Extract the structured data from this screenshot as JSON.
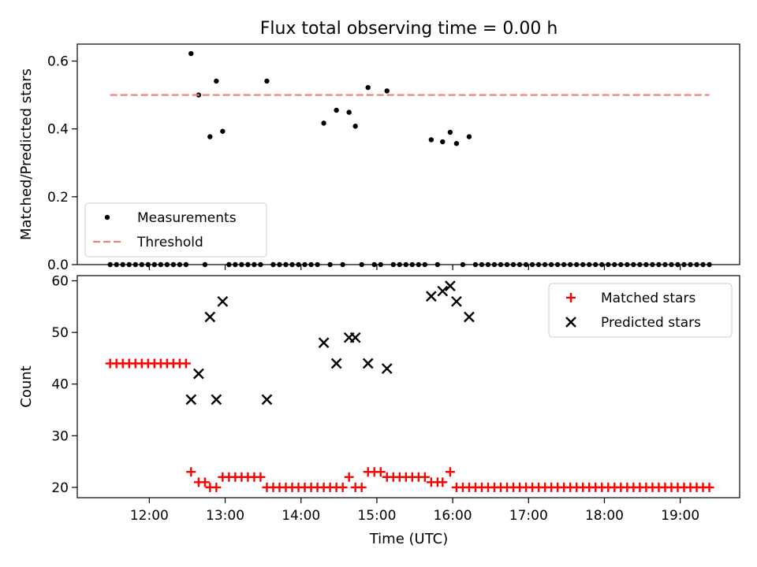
{
  "chart_data": {
    "title": "Flux total observing time = 0.00 h",
    "xlabel": "Time (UTC)",
    "x_ticks": [
      "12:00",
      "13:00",
      "14:00",
      "15:00",
      "16:00",
      "17:00",
      "18:00",
      "19:00"
    ],
    "x_range": [
      "11:03",
      "19:47"
    ],
    "panels": [
      {
        "type": "scatter",
        "ylabel": "Matched/Predicted stars",
        "ylim": [
          0,
          0.65
        ],
        "yticks": [
          "0.0",
          "0.2",
          "0.4",
          "0.6"
        ],
        "legend_position": "lower-left",
        "series": [
          {
            "name": "Measurements",
            "marker": "dot",
            "color": "#000000",
            "points": [
              [
                "11:29",
                0
              ],
              [
                "11:34",
                0
              ],
              [
                "11:39",
                0
              ],
              [
                "11:44",
                0
              ],
              [
                "11:49",
                0
              ],
              [
                "11:54",
                0
              ],
              [
                "11:59",
                0
              ],
              [
                "12:04",
                0
              ],
              [
                "12:09",
                0
              ],
              [
                "12:14",
                0
              ],
              [
                "12:19",
                0
              ],
              [
                "12:24",
                0
              ],
              [
                "12:29",
                0
              ],
              [
                "12:33",
                0.622
              ],
              [
                "12:39",
                0.5
              ],
              [
                "12:44",
                0
              ],
              [
                "12:48",
                0.377
              ],
              [
                "12:53",
                0.541
              ],
              [
                "12:58",
                0.393
              ],
              [
                "13:03",
                0
              ],
              [
                "13:08",
                0
              ],
              [
                "13:13",
                0
              ],
              [
                "13:18",
                0
              ],
              [
                "13:23",
                0
              ],
              [
                "13:28",
                0
              ],
              [
                "13:33",
                0.541
              ],
              [
                "13:38",
                0
              ],
              [
                "13:43",
                0
              ],
              [
                "13:48",
                0
              ],
              [
                "13:53",
                0
              ],
              [
                "13:58",
                0
              ],
              [
                "14:03",
                0
              ],
              [
                "14:08",
                0
              ],
              [
                "14:13",
                0
              ],
              [
                "14:18",
                0.417
              ],
              [
                "14:23",
                0
              ],
              [
                "14:28",
                0.455
              ],
              [
                "14:33",
                0
              ],
              [
                "14:38",
                0.449
              ],
              [
                "14:43",
                0.408
              ],
              [
                "14:48",
                0
              ],
              [
                "14:53",
                0.522
              ],
              [
                "14:58",
                0
              ],
              [
                "15:03",
                0
              ],
              [
                "15:08",
                0.512
              ],
              [
                "15:13",
                0
              ],
              [
                "15:18",
                0
              ],
              [
                "15:23",
                0
              ],
              [
                "15:28",
                0
              ],
              [
                "15:33",
                0
              ],
              [
                "15:38",
                0
              ],
              [
                "15:43",
                0.368
              ],
              [
                "15:48",
                0
              ],
              [
                "15:52",
                0.362
              ],
              [
                "15:58",
                0.39
              ],
              [
                "16:03",
                0.357
              ],
              [
                "16:08",
                0
              ],
              [
                "16:13",
                0.377
              ],
              [
                "16:18",
                0
              ],
              [
                "16:23",
                0
              ],
              [
                "16:28",
                0
              ],
              [
                "16:33",
                0
              ],
              [
                "16:38",
                0
              ],
              [
                "16:43",
                0
              ],
              [
                "16:48",
                0
              ],
              [
                "16:53",
                0
              ],
              [
                "16:58",
                0
              ],
              [
                "17:03",
                0
              ],
              [
                "17:08",
                0
              ],
              [
                "17:13",
                0
              ],
              [
                "17:18",
                0
              ],
              [
                "17:23",
                0
              ],
              [
                "17:28",
                0
              ],
              [
                "17:33",
                0
              ],
              [
                "17:38",
                0
              ],
              [
                "17:43",
                0
              ],
              [
                "17:48",
                0
              ],
              [
                "17:53",
                0
              ],
              [
                "17:58",
                0
              ],
              [
                "18:03",
                0
              ],
              [
                "18:08",
                0
              ],
              [
                "18:13",
                0
              ],
              [
                "18:18",
                0
              ],
              [
                "18:23",
                0
              ],
              [
                "18:28",
                0
              ],
              [
                "18:33",
                0
              ],
              [
                "18:38",
                0
              ],
              [
                "18:43",
                0
              ],
              [
                "18:48",
                0
              ],
              [
                "18:53",
                0
              ],
              [
                "18:58",
                0
              ],
              [
                "19:03",
                0
              ],
              [
                "19:08",
                0
              ],
              [
                "19:13",
                0
              ],
              [
                "19:18",
                0
              ],
              [
                "19:23",
                0
              ]
            ]
          },
          {
            "name": "Threshold",
            "type": "line",
            "style": "dashed",
            "color": "#f08080",
            "points": [
              [
                "11:29",
                0.5
              ],
              [
                "19:23",
                0.5
              ]
            ]
          }
        ]
      },
      {
        "type": "scatter",
        "ylabel": "Count",
        "ylim": [
          18,
          61
        ],
        "yticks": [
          "20",
          "30",
          "40",
          "50",
          "60"
        ],
        "legend_position": "upper-right",
        "series": [
          {
            "name": "Matched stars",
            "marker": "plus",
            "color": "#ff0000",
            "points": [
              [
                "11:29",
                44
              ],
              [
                "11:34",
                44
              ],
              [
                "11:39",
                44
              ],
              [
                "11:44",
                44
              ],
              [
                "11:49",
                44
              ],
              [
                "11:54",
                44
              ],
              [
                "11:59",
                44
              ],
              [
                "12:04",
                44
              ],
              [
                "12:09",
                44
              ],
              [
                "12:14",
                44
              ],
              [
                "12:19",
                44
              ],
              [
                "12:24",
                44
              ],
              [
                "12:29",
                44
              ],
              [
                "12:33",
                23
              ],
              [
                "12:39",
                21
              ],
              [
                "12:44",
                21
              ],
              [
                "12:48",
                20
              ],
              [
                "12:53",
                20
              ],
              [
                "12:58",
                22
              ],
              [
                "13:03",
                22
              ],
              [
                "13:08",
                22
              ],
              [
                "13:13",
                22
              ],
              [
                "13:18",
                22
              ],
              [
                "13:23",
                22
              ],
              [
                "13:28",
                22
              ],
              [
                "13:33",
                20
              ],
              [
                "13:38",
                20
              ],
              [
                "13:43",
                20
              ],
              [
                "13:48",
                20
              ],
              [
                "13:53",
                20
              ],
              [
                "13:58",
                20
              ],
              [
                "14:03",
                20
              ],
              [
                "14:08",
                20
              ],
              [
                "14:13",
                20
              ],
              [
                "14:18",
                20
              ],
              [
                "14:23",
                20
              ],
              [
                "14:28",
                20
              ],
              [
                "14:33",
                20
              ],
              [
                "14:38",
                22
              ],
              [
                "14:43",
                20
              ],
              [
                "14:48",
                20
              ],
              [
                "14:53",
                23
              ],
              [
                "14:58",
                23
              ],
              [
                "15:03",
                23
              ],
              [
                "15:08",
                22
              ],
              [
                "15:13",
                22
              ],
              [
                "15:18",
                22
              ],
              [
                "15:23",
                22
              ],
              [
                "15:28",
                22
              ],
              [
                "15:33",
                22
              ],
              [
                "15:38",
                22
              ],
              [
                "15:43",
                21
              ],
              [
                "15:48",
                21
              ],
              [
                "15:52",
                21
              ],
              [
                "15:58",
                23
              ],
              [
                "16:03",
                20
              ],
              [
                "16:08",
                20
              ],
              [
                "16:13",
                20
              ],
              [
                "16:18",
                20
              ],
              [
                "16:23",
                20
              ],
              [
                "16:28",
                20
              ],
              [
                "16:33",
                20
              ],
              [
                "16:38",
                20
              ],
              [
                "16:43",
                20
              ],
              [
                "16:48",
                20
              ],
              [
                "16:53",
                20
              ],
              [
                "16:58",
                20
              ],
              [
                "17:03",
                20
              ],
              [
                "17:08",
                20
              ],
              [
                "17:13",
                20
              ],
              [
                "17:18",
                20
              ],
              [
                "17:23",
                20
              ],
              [
                "17:28",
                20
              ],
              [
                "17:33",
                20
              ],
              [
                "17:38",
                20
              ],
              [
                "17:43",
                20
              ],
              [
                "17:48",
                20
              ],
              [
                "17:53",
                20
              ],
              [
                "17:58",
                20
              ],
              [
                "18:03",
                20
              ],
              [
                "18:08",
                20
              ],
              [
                "18:13",
                20
              ],
              [
                "18:18",
                20
              ],
              [
                "18:23",
                20
              ],
              [
                "18:28",
                20
              ],
              [
                "18:33",
                20
              ],
              [
                "18:38",
                20
              ],
              [
                "18:43",
                20
              ],
              [
                "18:48",
                20
              ],
              [
                "18:53",
                20
              ],
              [
                "18:58",
                20
              ],
              [
                "19:03",
                20
              ],
              [
                "19:08",
                20
              ],
              [
                "19:13",
                20
              ],
              [
                "19:18",
                20
              ],
              [
                "19:23",
                20
              ]
            ]
          },
          {
            "name": "Predicted stars",
            "marker": "x",
            "color": "#000000",
            "points": [
              [
                "12:33",
                37
              ],
              [
                "12:39",
                42
              ],
              [
                "12:48",
                53
              ],
              [
                "12:53",
                37
              ],
              [
                "12:58",
                56
              ],
              [
                "13:33",
                37
              ],
              [
                "14:18",
                48
              ],
              [
                "14:28",
                44
              ],
              [
                "14:38",
                49
              ],
              [
                "14:43",
                49
              ],
              [
                "14:53",
                44
              ],
              [
                "15:08",
                43
              ],
              [
                "15:43",
                57
              ],
              [
                "15:52",
                58
              ],
              [
                "15:58",
                59
              ],
              [
                "16:03",
                56
              ],
              [
                "16:13",
                53
              ]
            ]
          }
        ]
      }
    ]
  }
}
